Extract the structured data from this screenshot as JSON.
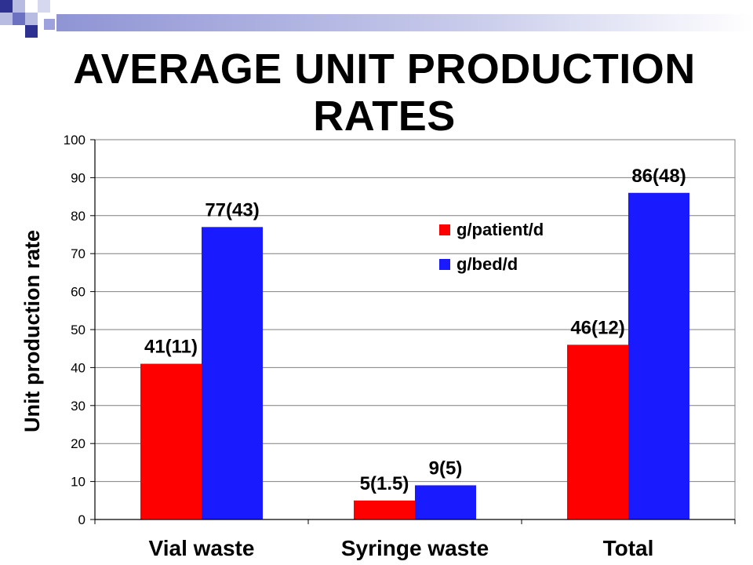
{
  "slide": {
    "title": "AVERAGE UNIT PRODUCTION RATES"
  },
  "colors": {
    "decoration_dark": "#2f3192",
    "decoration_light": "#b8bce3",
    "grid": "#7f7f7f"
  },
  "chart_data": {
    "type": "bar",
    "title": "",
    "xlabel": "",
    "ylabel": "Unit production rate",
    "ylim": [
      0,
      100
    ],
    "yticks": [
      0,
      10,
      20,
      30,
      40,
      50,
      60,
      70,
      80,
      90,
      100
    ],
    "grid": true,
    "legend_position": "upper-middle-right",
    "categories": [
      "Vial waste",
      "Syringe waste",
      "Total"
    ],
    "series": [
      {
        "name": "g/patient/d",
        "color": "#ff0000",
        "values": [
          41,
          5,
          46
        ],
        "labels": [
          "41(11)",
          "5(1.5)",
          "46(12)"
        ]
      },
      {
        "name": "g/bed/d",
        "color": "#1a1aff",
        "values": [
          77,
          9,
          86
        ],
        "labels": [
          "77(43)",
          "9(5)",
          "86(48)"
        ]
      }
    ]
  }
}
